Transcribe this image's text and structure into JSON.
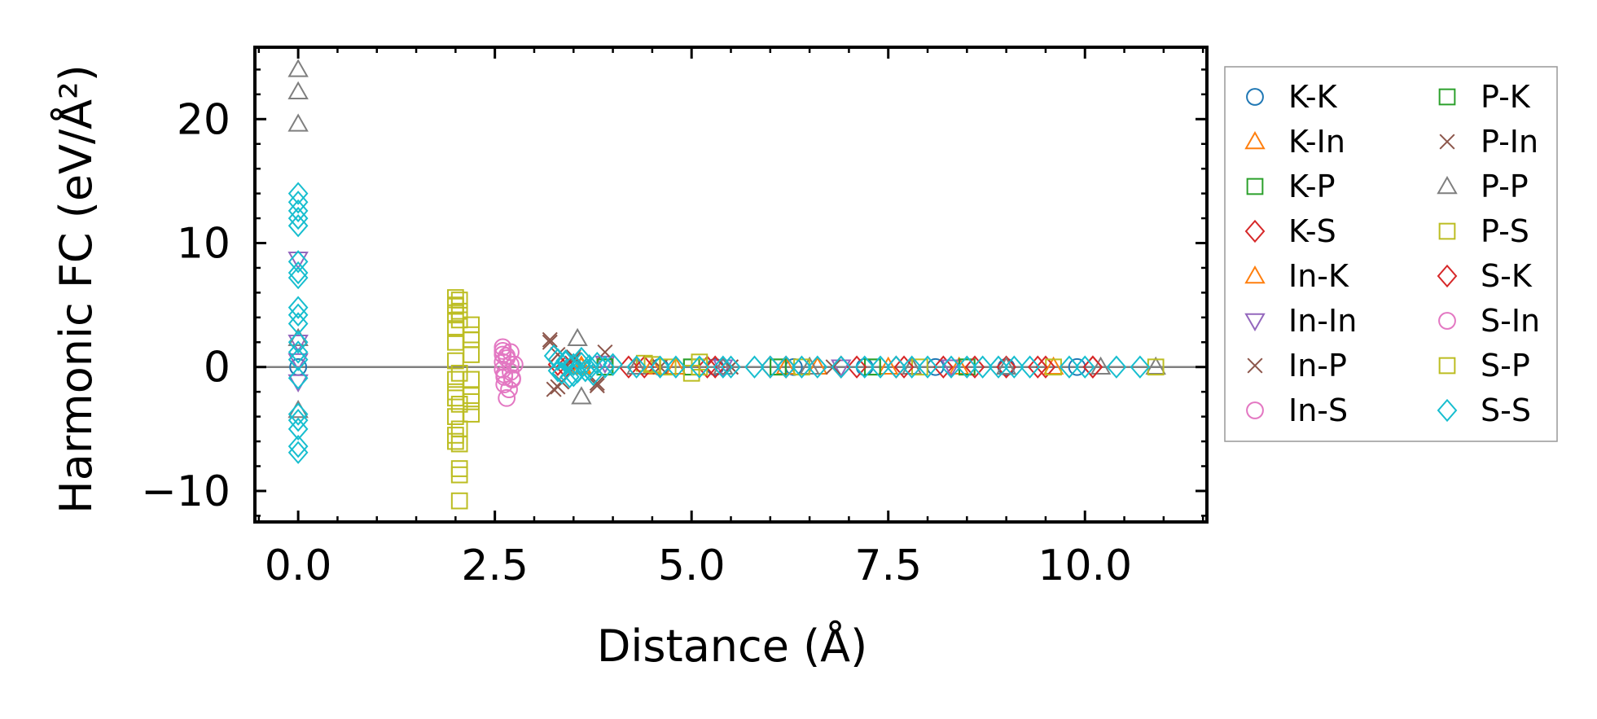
{
  "chart_data": {
    "type": "scatter",
    "title": "",
    "xlabel": "Distance (Å)",
    "ylabel": "Harmonic FC (eV/Å²)",
    "xlim": [
      -0.55,
      11.55
    ],
    "ylim": [
      -12.5,
      25.8
    ],
    "xticks": [
      0.0,
      2.5,
      5.0,
      7.5,
      10.0
    ],
    "xtick_labels": [
      "0.0",
      "2.5",
      "5.0",
      "7.5",
      "10.0"
    ],
    "yticks": [
      -10,
      0,
      10,
      20
    ],
    "ytick_labels": [
      "−10",
      "0",
      "10",
      "20"
    ],
    "grid": false,
    "zero_line": true,
    "legend": {
      "position": "outside-right",
      "columns": 2
    },
    "series": [
      {
        "name": "K-K",
        "marker": "circle",
        "color": "#1f77b4",
        "x": [
          0,
          4.6,
          5.3,
          6.3,
          7.2,
          8.1,
          9.0,
          9.9
        ],
        "y": [
          0,
          0,
          0,
          0,
          0,
          0,
          0,
          0
        ]
      },
      {
        "name": "K-In",
        "marker": "triangle-up",
        "color": "#ff7f0e",
        "x": [
          3.6,
          4.5,
          5.4,
          6.6,
          7.5,
          8.4,
          9.6
        ],
        "y": [
          0.1,
          0,
          0,
          0,
          0,
          0,
          0
        ]
      },
      {
        "name": "K-P",
        "marker": "square",
        "color": "#2ca02c",
        "x": [
          3.9,
          5.0,
          6.1,
          7.3,
          8.5
        ],
        "y": [
          0,
          0,
          0,
          0,
          0
        ]
      },
      {
        "name": "K-S",
        "marker": "diamond",
        "color": "#d62728",
        "x": [
          3.3,
          4.2,
          5.2,
          6.0,
          6.9,
          7.6,
          8.2,
          9.0,
          9.5,
          10.1
        ],
        "y": [
          0.2,
          0,
          0,
          0,
          0,
          0,
          0,
          0,
          0,
          0
        ]
      },
      {
        "name": "In-K",
        "marker": "triangle-up",
        "color": "#ff7f0e",
        "x": [
          3.6,
          4.8,
          6.2,
          7.8
        ],
        "y": [
          0,
          0,
          0,
          0
        ]
      },
      {
        "name": "In-In",
        "marker": "triangle-down",
        "color": "#9467bd",
        "x": [
          0,
          0,
          0,
          0,
          3.9,
          5.4,
          6.9,
          8.3
        ],
        "y": [
          8.7,
          2.0,
          -1.2,
          0.5,
          0.3,
          0,
          0,
          0
        ]
      },
      {
        "name": "In-P",
        "marker": "x",
        "color": "#8c564b",
        "x": [
          3.2,
          3.25,
          3.3,
          3.35,
          3.5,
          3.8,
          3.9,
          4.6,
          5.5,
          6.8
        ],
        "y": [
          2.2,
          -1.8,
          1.0,
          -1.2,
          0.8,
          -1.5,
          1.2,
          0,
          0,
          0
        ]
      },
      {
        "name": "In-S",
        "marker": "circle",
        "color": "#e377c2",
        "x": [
          2.6,
          2.6,
          2.6,
          2.6,
          2.62,
          2.62,
          2.65,
          2.65,
          2.7,
          2.7,
          2.72,
          2.75
        ],
        "y": [
          1.6,
          1.0,
          0.4,
          -0.2,
          -0.8,
          -1.4,
          -2.5,
          0.7,
          -0.4,
          1.2,
          -1.0,
          0.2
        ]
      },
      {
        "name": "P-K",
        "marker": "square",
        "color": "#2ca02c",
        "x": [
          3.9,
          5.0,
          6.1,
          7.3,
          8.5
        ],
        "y": [
          0,
          0,
          0,
          0,
          0
        ]
      },
      {
        "name": "P-In",
        "marker": "x",
        "color": "#8c564b",
        "x": [
          3.2,
          3.3,
          3.5,
          3.8,
          5.5
        ],
        "y": [
          2.0,
          -1.6,
          0.6,
          -1.3,
          0
        ]
      },
      {
        "name": "P-P",
        "marker": "triangle-up",
        "color": "#7f7f7f",
        "x": [
          0,
          0,
          0,
          0,
          0,
          3.55,
          3.6,
          4.3,
          5.4,
          6.5,
          7.8,
          9.0,
          10.2,
          10.9
        ],
        "y": [
          24.0,
          22.2,
          19.6,
          2.3,
          -3.5,
          2.3,
          -2.4,
          0,
          0,
          0,
          0,
          0,
          0,
          0
        ]
      },
      {
        "name": "P-S",
        "marker": "square",
        "color": "#bcbd22",
        "x": [
          2.0,
          2.0,
          2.0,
          2.0,
          2.0,
          2.0,
          2.0,
          2.0,
          2.0,
          2.0,
          2.05,
          2.05,
          2.05,
          2.05,
          2.05,
          2.05,
          2.05,
          2.05,
          2.2,
          2.2,
          2.2,
          2.2,
          2.2,
          2.2,
          4.4,
          4.7,
          5.0,
          5.1,
          6.4,
          7.9,
          9.6,
          10.9
        ],
        "y": [
          5.6,
          4.9,
          4.2,
          3.1,
          2.0,
          0.5,
          -1.0,
          -2.5,
          -4.0,
          -6.0,
          5.4,
          3.8,
          -0.5,
          -3.0,
          -5.0,
          -8.2,
          -8.7,
          -10.8,
          3.4,
          2.2,
          1.0,
          -1.0,
          -2.3,
          -3.8,
          0.3,
          0,
          -0.5,
          0.4,
          0,
          0,
          0,
          0
        ]
      },
      {
        "name": "S-K",
        "marker": "diamond",
        "color": "#d62728",
        "x": [
          3.4,
          4.4,
          5.3,
          6.2,
          7.1,
          7.7,
          8.6,
          9.4,
          10.1
        ],
        "y": [
          0,
          0,
          0,
          0,
          0,
          0,
          0,
          0,
          0
        ]
      },
      {
        "name": "S-In",
        "marker": "circle",
        "color": "#e377c2",
        "x": [
          2.6,
          2.62,
          2.65,
          2.68,
          2.7,
          2.72
        ],
        "y": [
          1.3,
          -0.6,
          0.9,
          -1.8,
          0.2,
          -0.9
        ]
      },
      {
        "name": "S-P",
        "marker": "square",
        "color": "#bcbd22",
        "x": [
          2.0,
          2.0,
          2.0,
          2.05,
          2.05,
          2.2,
          2.2,
          4.5,
          5.1
        ],
        "y": [
          5.0,
          -2.0,
          -5.5,
          4.5,
          -6.2,
          2.6,
          -2.8,
          0.2,
          0
        ]
      },
      {
        "name": "S-S",
        "marker": "diamond",
        "color": "#17becf",
        "x": [
          0,
          0,
          0,
          0,
          0,
          0,
          0,
          0,
          0,
          0,
          0,
          0,
          0,
          0,
          0,
          0,
          0,
          0,
          0,
          0,
          3.25,
          3.3,
          3.35,
          3.4,
          3.45,
          3.5,
          3.55,
          3.6,
          3.65,
          3.7,
          3.75,
          3.8,
          3.9,
          4.0,
          3.3,
          3.4,
          3.5,
          3.6,
          3.7,
          4.3,
          4.6,
          4.8,
          5.1,
          5.4,
          5.5,
          5.8,
          6.0,
          6.2,
          6.4,
          6.6,
          6.9,
          7.2,
          7.4,
          7.6,
          7.8,
          8.0,
          8.3,
          8.5,
          8.7,
          8.9,
          9.1,
          9.3,
          9.8,
          10.0,
          10.4,
          10.7
        ],
        "y": [
          14.0,
          13.3,
          12.6,
          12.0,
          11.4,
          8.5,
          7.6,
          7.2,
          4.8,
          4.2,
          3.5,
          2.0,
          1.2,
          0.6,
          -0.9,
          -3.8,
          -4.3,
          -5.0,
          -6.4,
          -6.9,
          0.9,
          0.6,
          -0.5,
          0.4,
          -0.8,
          0.2,
          -0.4,
          0.7,
          -0.3,
          0.1,
          -0.6,
          0.3,
          0,
          0.2,
          -0.3,
          0.5,
          -0.7,
          0.3,
          -0.2,
          0,
          0,
          0,
          0,
          0,
          0,
          0,
          0,
          0,
          0,
          0,
          0,
          0,
          0,
          0,
          0,
          0,
          0,
          0,
          0,
          0,
          0,
          0,
          0,
          0,
          0,
          0
        ]
      }
    ]
  }
}
